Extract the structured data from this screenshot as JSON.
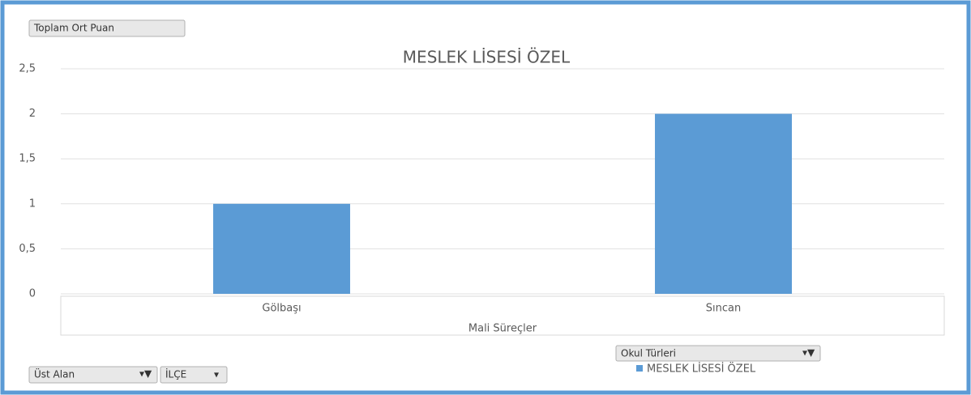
{
  "chart_data": {
    "type": "bar",
    "title": "MESLEK LİSESİ ÖZEL",
    "xlabel": "Mali Süreçler",
    "categories": [
      "Gölbaşı",
      "Sıncan"
    ],
    "series": [
      {
        "name": "MESLEK LİSESİ ÖZEL",
        "color": "#5b9bd5",
        "values": [
          1,
          2
        ]
      }
    ],
    "ylim": [
      0,
      2.5
    ],
    "yticks": [
      0,
      {
        "value": 0.5,
        "label": "0,5"
      },
      1,
      {
        "value": 1.5,
        "label": "1,5"
      },
      2,
      {
        "value": 2.5,
        "label": "2,5"
      }
    ],
    "grid": true,
    "legend": "bottom-right"
  },
  "pivot_fields": {
    "value_field": "Toplam Ort Puan",
    "legend_field": "Okul Türleri",
    "filter_fields": [
      "Üst Alan",
      "İLÇE"
    ]
  }
}
